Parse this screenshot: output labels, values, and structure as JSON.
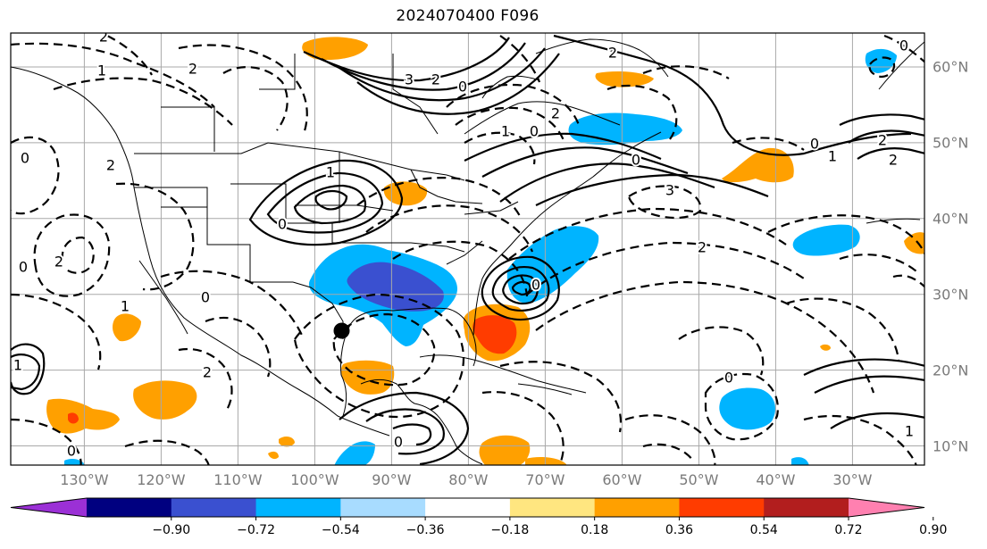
{
  "title": "2024070400 F096",
  "lon_labels": [
    {
      "text": "130°W",
      "lon": -130
    },
    {
      "text": "120°W",
      "lon": -120
    },
    {
      "text": "110°W",
      "lon": -110
    },
    {
      "text": "100°W",
      "lon": -100
    },
    {
      "text": "90°W",
      "lon": -90
    },
    {
      "text": "80°W",
      "lon": -80
    },
    {
      "text": "70°W",
      "lon": -70
    },
    {
      "text": "60°W",
      "lon": -60
    },
    {
      "text": "50°W",
      "lon": -50
    },
    {
      "text": "40°W",
      "lon": -40
    },
    {
      "text": "30°W",
      "lon": -30
    }
  ],
  "lat_labels": [
    {
      "text": "60°N",
      "lat": 60
    },
    {
      "text": "50°N",
      "lat": 50
    },
    {
      "text": "40°N",
      "lat": 40
    },
    {
      "text": "30°N",
      "lat": 30
    },
    {
      "text": "20°N",
      "lat": 20
    },
    {
      "text": "10°N",
      "lat": 10
    }
  ],
  "colorbar": {
    "colors": [
      "#9b30d6",
      "#000080",
      "#3a50d0",
      "#00b4ff",
      "#a8dcff",
      "#ffffff",
      "#ffe680",
      "#ffa000",
      "#ff3c00",
      "#b21e1e",
      "#ff80b0"
    ],
    "ticks": [
      "−0.90",
      "−0.72",
      "−0.54",
      "−0.36",
      "−0.18",
      "0.18",
      "0.36",
      "0.54",
      "0.72",
      "0.90"
    ]
  },
  "contour_labels": [
    "1",
    "2",
    "2",
    "3",
    "2",
    "0",
    "1",
    "0",
    "2",
    "3",
    "2",
    "0",
    "2",
    "2",
    "0",
    "1",
    "0",
    "1",
    "0",
    "2",
    "2",
    "1",
    "2",
    "0",
    "0",
    "0",
    "1",
    "0",
    "1",
    "0",
    "2",
    "0",
    "0"
  ],
  "storm_marker": {
    "lon": -96.5,
    "lat": 25.2
  }
}
